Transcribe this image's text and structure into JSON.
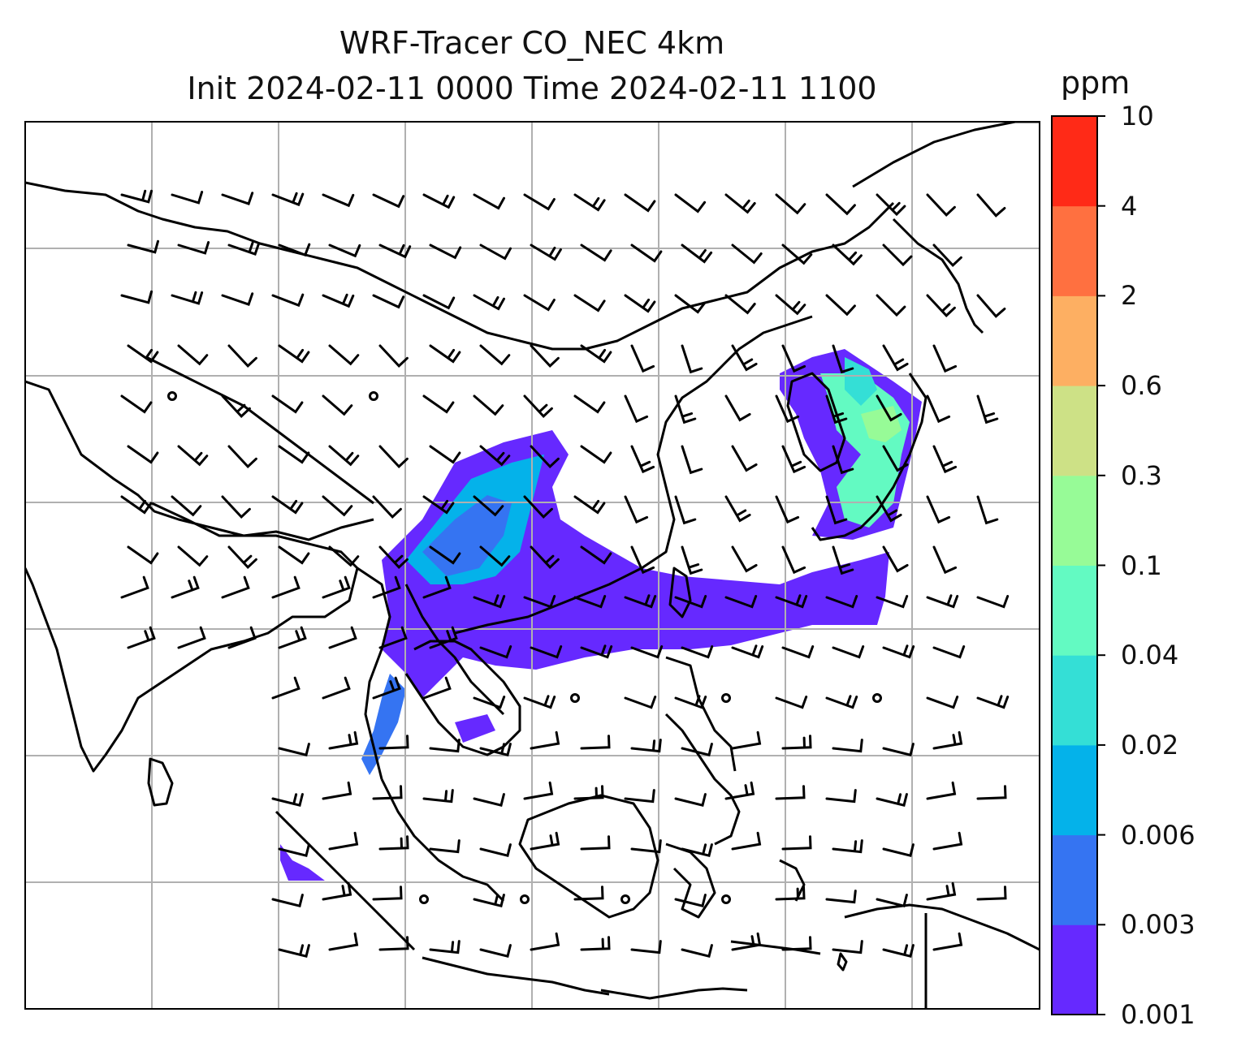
{
  "title": {
    "line1": "WRF-Tracer CO_NEC 4km",
    "line2": "Init 2024-02-11 0000 Time 2024-02-11 1100"
  },
  "colorbar": {
    "label": "ppm",
    "ticks": [
      "0.001",
      "0.003",
      "0.006",
      "0.02",
      "0.04",
      "0.1",
      "0.3",
      "0.6",
      "2",
      "4",
      "10"
    ],
    "colors": [
      "#6629ff",
      "#3574f2",
      "#04b2ea",
      "#34dfd6",
      "#63fac2",
      "#97fb97",
      "#cde186",
      "#fdaf62",
      "#ff7040",
      "#ff2a17"
    ]
  },
  "map": {
    "grid": "on",
    "coastlines": "black",
    "wind": "barbs"
  }
}
